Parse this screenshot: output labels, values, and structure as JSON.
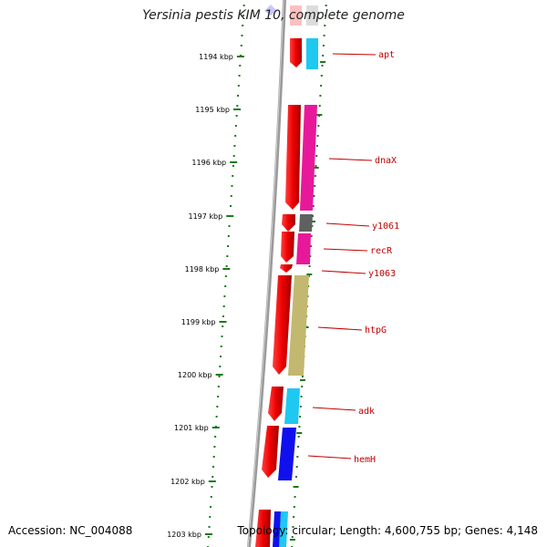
{
  "title": "Yersinia pestis KIM 10, complete genome",
  "footer": {
    "accession": "Accession: NC_004088",
    "summary": "Topology: circular; Length: 4,600,755 bp; Genes: 4,148"
  },
  "colors": {
    "tick_dots": "#1a7a1a",
    "backbone": "#888888",
    "gene_label": "#c00000",
    "strand_arrow": "#ee0000"
  },
  "scale": {
    "unit": "kbp",
    "labels": [
      "1194 kbp",
      "1195 kbp",
      "1196 kbp",
      "1197 kbp",
      "1198 kbp",
      "1199 kbp",
      "1200 kbp",
      "1201 kbp",
      "1202 kbp",
      "1203 kbp"
    ]
  },
  "genes": [
    {
      "name": "apt",
      "color": "#1ec8f0"
    },
    {
      "name": "dnaX",
      "color": "#e8189a"
    },
    {
      "name": "y1061",
      "color": "#606060"
    },
    {
      "name": "recR",
      "color": "#e8189a"
    },
    {
      "name": "y1063",
      "color": "#606060"
    },
    {
      "name": "htpG",
      "color": "#c2b870"
    },
    {
      "name": "adk",
      "color": "#1ec8f0"
    },
    {
      "name": "hemH",
      "color": "#1010ee"
    }
  ]
}
